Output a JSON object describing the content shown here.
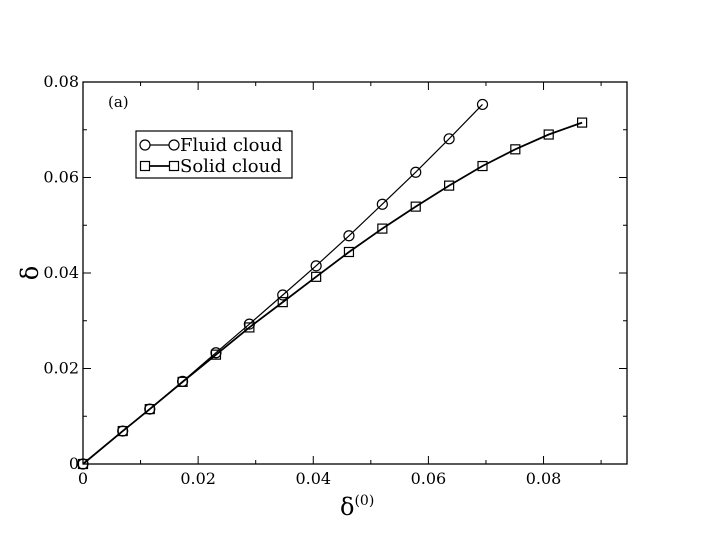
{
  "chart_data": {
    "type": "line",
    "title": "",
    "panel_label": "(a)",
    "xlabel": "δ",
    "xlabel_sup": "(0)",
    "ylabel": "δ",
    "xlim": [
      0,
      0.0945
    ],
    "ylim": [
      0,
      0.08
    ],
    "xticks": [
      0,
      0.02,
      0.04,
      0.06,
      0.08
    ],
    "xtick_labels": [
      "0",
      "0.02",
      "0.04",
      "0.06",
      "0.08"
    ],
    "yticks": [
      0,
      0.02,
      0.04,
      0.06,
      0.08
    ],
    "ytick_labels": [
      "0",
      "0.02",
      "0.04",
      "0.06",
      "0.08"
    ],
    "grid": false,
    "legend_position": "upper-left",
    "series": [
      {
        "name": "Fluid cloud",
        "marker": "circle",
        "x": [
          0,
          0.0069,
          0.0116,
          0.0173,
          0.0231,
          0.0289,
          0.0347,
          0.0405,
          0.0462,
          0.052,
          0.0578,
          0.0636,
          0.0694
        ],
        "y": [
          0,
          0.0069,
          0.0115,
          0.0173,
          0.0233,
          0.0293,
          0.0354,
          0.0415,
          0.0478,
          0.0544,
          0.0611,
          0.0681,
          0.0753
        ]
      },
      {
        "name": "Solid cloud",
        "marker": "square",
        "x": [
          0,
          0.0069,
          0.0116,
          0.0173,
          0.0231,
          0.0289,
          0.0347,
          0.0405,
          0.0462,
          0.052,
          0.0578,
          0.0636,
          0.0694,
          0.0751,
          0.0809,
          0.0867
        ],
        "y": [
          0,
          0.0069,
          0.0115,
          0.0172,
          0.0229,
          0.0286,
          0.0339,
          0.0392,
          0.0444,
          0.0493,
          0.0539,
          0.0583,
          0.0624,
          0.0659,
          0.069,
          0.0715
        ]
      }
    ]
  }
}
